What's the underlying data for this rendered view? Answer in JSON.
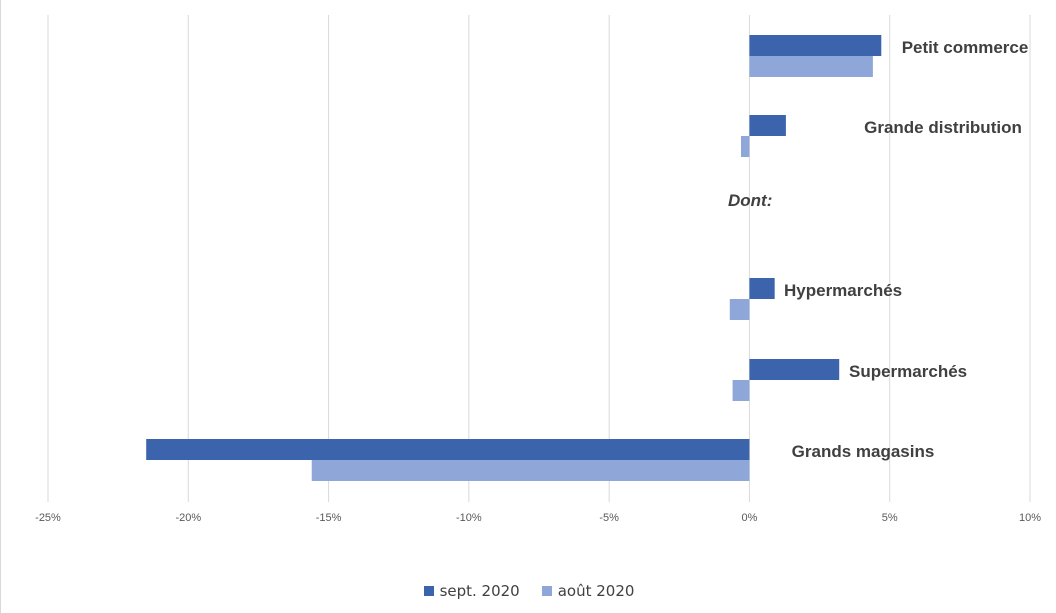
{
  "chart_data": {
    "type": "bar",
    "orientation": "horizontal",
    "categories": [
      "Petit commerce",
      "Grande distribution",
      "Dont:",
      "Hypermarchés",
      "Supermarchés",
      "Grands magasins"
    ],
    "series": [
      {
        "name": "sept. 2020",
        "color": "#3b64ad",
        "values": [
          4.7,
          1.3,
          null,
          0.9,
          3.2,
          -21.5
        ]
      },
      {
        "name": "août 2020",
        "color": "#8fa6d8",
        "values": [
          4.4,
          -0.3,
          null,
          -0.7,
          -0.6,
          -15.6
        ]
      }
    ],
    "xlim": [
      -25,
      10
    ],
    "xticks": [
      "-25%",
      "-20%",
      "-15%",
      "-10%",
      "-5%",
      "0%",
      "5%",
      "10%"
    ],
    "grid": true,
    "legend_position": "bottom",
    "title": "",
    "xlabel": "",
    "ylabel": ""
  }
}
